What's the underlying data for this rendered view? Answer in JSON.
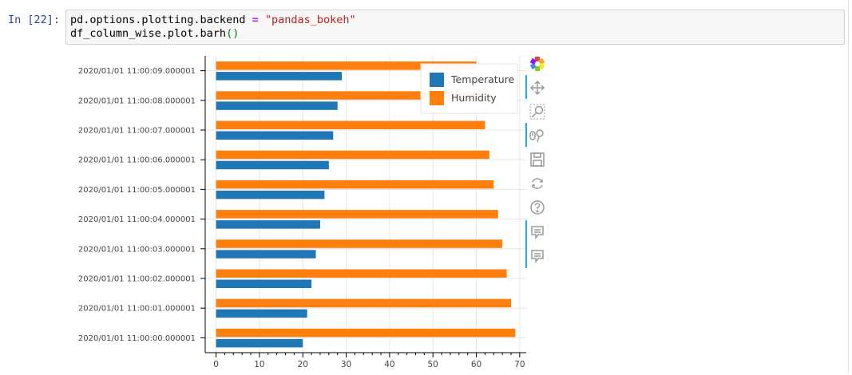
{
  "cell": {
    "prompt": "In [22]:",
    "code_line1": {
      "part1": "pd.options.plotting.backend ",
      "op": "=",
      "part2": " ",
      "string": "\"pandas_bokeh\""
    },
    "code_line2": {
      "part1": "df_column_wise.plot.barh",
      "paren": "()"
    }
  },
  "toolbar": {
    "tools": [
      {
        "icon": "bokeh-logo-icon"
      },
      {
        "icon": "pan-icon"
      },
      {
        "icon": "box-zoom-icon"
      },
      {
        "icon": "wheel-zoom-icon"
      },
      {
        "icon": "save-icon"
      },
      {
        "icon": "reset-icon"
      },
      {
        "icon": "help-icon"
      },
      {
        "icon": "hover-icon"
      },
      {
        "icon": "hover-icon"
      }
    ]
  },
  "chart_data": {
    "type": "bar",
    "orientation": "horizontal",
    "categories": [
      "2020/01/01 11:00:00.000001",
      "2020/01/01 11:00:01.000001",
      "2020/01/01 11:00:02.000001",
      "2020/01/01 11:00:03.000001",
      "2020/01/01 11:00:04.000001",
      "2020/01/01 11:00:05.000001",
      "2020/01/01 11:00:06.000001",
      "2020/01/01 11:00:07.000001",
      "2020/01/01 11:00:08.000001",
      "2020/01/01 11:00:09.000001"
    ],
    "series": [
      {
        "name": "Temperature",
        "color": "#1f77b4",
        "values": [
          20,
          21,
          22,
          23,
          24,
          25,
          26,
          27,
          28,
          29
        ]
      },
      {
        "name": "Humidity",
        "color": "#ff7f0e",
        "values": [
          69,
          68,
          67,
          66,
          65,
          64,
          63,
          62,
          61,
          60
        ]
      }
    ],
    "xticks": [
      0,
      10,
      20,
      30,
      40,
      50,
      60,
      70
    ],
    "xlim": [
      -2.5,
      71.5
    ],
    "grid": true,
    "legend_position": "top-right",
    "title": "",
    "xlabel": "",
    "ylabel": ""
  }
}
